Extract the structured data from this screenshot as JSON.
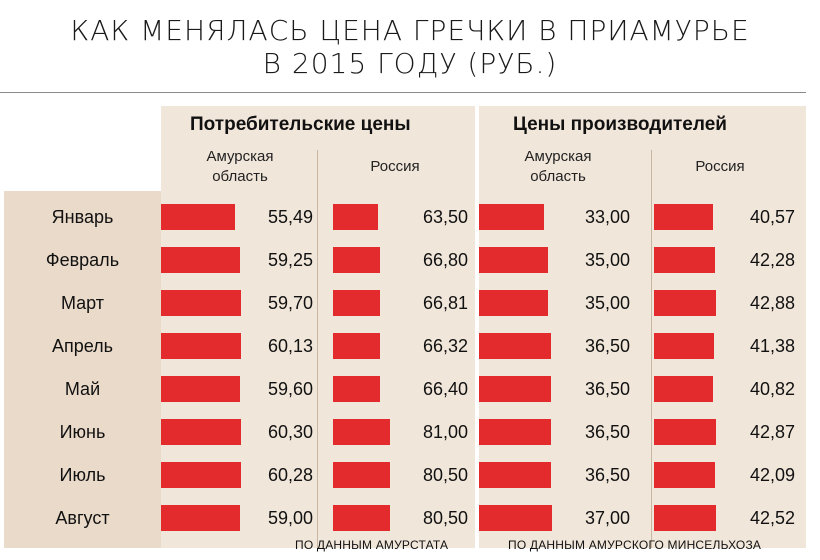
{
  "title_line1": "КАК МЕНЯЛАСЬ ЦЕНА ГРЕЧКИ В ПРИАМУРЬЕ",
  "title_line2": "В 2015 ГОДУ (РУБ.)",
  "groups": {
    "consumer": {
      "title": "Потребительские цены",
      "col1": "Амурская\nобласть",
      "col2": "Россия",
      "source": "ПО ДАННЫМ АМУРСТАТА"
    },
    "producer": {
      "title": "Цены производителей",
      "col1": "Амурская\nобласть",
      "col2": "Россия",
      "source": "ПО ДАННЫМ АМУРСКОГО МИНСЕЛЬХОЗА"
    }
  },
  "colors": {
    "bar": "#e32a2c",
    "panel": "#f1e6da",
    "months_panel": "#eadaca"
  },
  "chart_data": {
    "type": "bar",
    "orientation": "horizontal",
    "title": "КАК МЕНЯЛАСЬ ЦЕНА ГРЕЧКИ В ПРИАМУРЬЕ В 2015 ГОДУ (РУБ.)",
    "categories": [
      "Январь",
      "Февраль",
      "Март",
      "Апрель",
      "Май",
      "Июнь",
      "Июль",
      "Август"
    ],
    "series": [
      {
        "group": "Потребительские цены",
        "name": "Амурская область",
        "values": [
          55.49,
          59.25,
          59.7,
          60.13,
          59.6,
          60.3,
          60.28,
          59.0
        ],
        "labels": [
          "55,49",
          "59,25",
          "59,70",
          "60,13",
          "59,60",
          "60,30",
          "60,28",
          "59,00"
        ]
      },
      {
        "group": "Потребительские цены",
        "name": "Россия",
        "values": [
          63.5,
          66.8,
          66.81,
          66.32,
          66.4,
          81.0,
          80.5,
          80.5
        ],
        "labels": [
          "63,50",
          "66,80",
          "66,81",
          "66,32",
          "66,40",
          "81,00",
          "80,50",
          "80,50"
        ]
      },
      {
        "group": "Цены производителей",
        "name": "Амурская область",
        "values": [
          33.0,
          35.0,
          35.0,
          36.5,
          36.5,
          36.5,
          36.5,
          37.0
        ],
        "labels": [
          "33,00",
          "35,00",
          "35,00",
          "36,50",
          "36,50",
          "36,50",
          "36,50",
          "37,00"
        ]
      },
      {
        "group": "Цены производителей",
        "name": "Россия",
        "values": [
          40.57,
          42.28,
          42.88,
          41.38,
          40.82,
          42.87,
          42.09,
          42.52
        ],
        "labels": [
          "40,57",
          "42,28",
          "42,88",
          "41,38",
          "40,82",
          "42,87",
          "42,09",
          "42,52"
        ]
      }
    ]
  }
}
